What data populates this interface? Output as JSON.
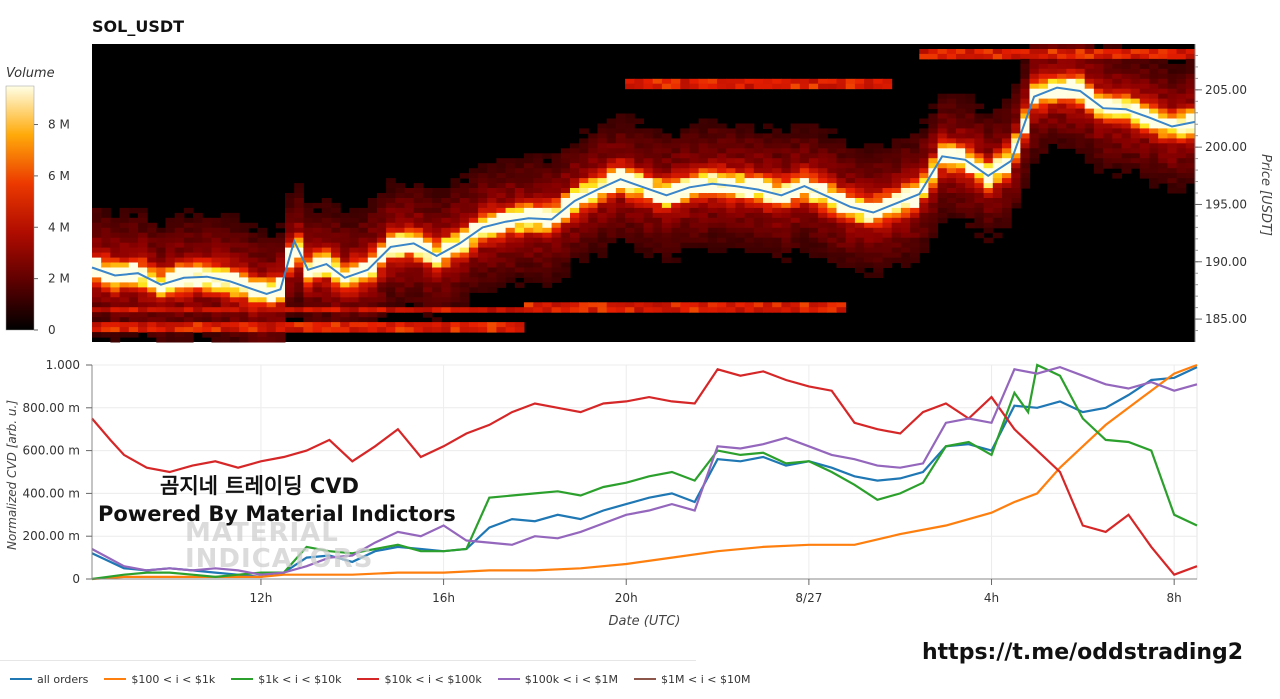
{
  "title": "SOL_USDT",
  "colorbar": {
    "title": "Volume",
    "ticks": [
      "0",
      "2 M",
      "4 M",
      "6 M",
      "8 M"
    ],
    "values": [
      0,
      2,
      4,
      6,
      8
    ],
    "max": 9.5
  },
  "watermark": {
    "line1": "곰지네 트레이딩 CVD",
    "line2": "Powered By Material Indictors",
    "brand_line1": "MATERIAL",
    "brand_line2": "INDICATORS"
  },
  "telegram_url": "https://t.me/oddstrading2",
  "legend": [
    {
      "label": "all orders",
      "color": "#1f77b4"
    },
    {
      "label": "$100 < i < $1k",
      "color": "#ff7f0e"
    },
    {
      "label": "$1k < i < $10k",
      "color": "#2ca02c"
    },
    {
      "label": "$10k < i < $100k",
      "color": "#d62728"
    },
    {
      "label": "$100k < i < $1M",
      "color": "#9467bd"
    },
    {
      "label": "$1M < i < $10M",
      "color": "#8c564b"
    }
  ],
  "chart_data": [
    {
      "type": "heatmap",
      "title": "SOL_USDT",
      "ylabel": "Price [USDT]",
      "ylim": [
        183,
        209
      ],
      "yticks": [
        "185.00",
        "190.00",
        "195.00",
        "200.00",
        "205.00"
      ],
      "ytick_values": [
        185,
        190,
        195,
        200,
        205
      ],
      "x_hours": [
        8.5,
        32.5
      ],
      "price_line": {
        "color": "#3a86c8",
        "points": [
          [
            8.5,
            189.5
          ],
          [
            9,
            188.8
          ],
          [
            9.5,
            189.0
          ],
          [
            10,
            188.0
          ],
          [
            10.5,
            188.6
          ],
          [
            11,
            188.7
          ],
          [
            11.5,
            188.3
          ],
          [
            12,
            187.6
          ],
          [
            12.3,
            187.2
          ],
          [
            12.6,
            187.6
          ],
          [
            12.9,
            191.8
          ],
          [
            13.2,
            189.3
          ],
          [
            13.6,
            189.8
          ],
          [
            14,
            188.6
          ],
          [
            14.5,
            189.3
          ],
          [
            15,
            191.3
          ],
          [
            15.5,
            191.6
          ],
          [
            16,
            190.5
          ],
          [
            16.5,
            191.6
          ],
          [
            17,
            193.0
          ],
          [
            17.5,
            193.5
          ],
          [
            18,
            193.8
          ],
          [
            18.5,
            193.7
          ],
          [
            19,
            195.3
          ],
          [
            19.5,
            196.3
          ],
          [
            20,
            197.2
          ],
          [
            20.5,
            196.5
          ],
          [
            21,
            195.8
          ],
          [
            21.5,
            196.5
          ],
          [
            22,
            196.8
          ],
          [
            22.5,
            196.6
          ],
          [
            23,
            196.3
          ],
          [
            23.5,
            195.8
          ],
          [
            24,
            196.6
          ],
          [
            24.5,
            195.7
          ],
          [
            25,
            194.8
          ],
          [
            25.5,
            194.3
          ],
          [
            26,
            195.1
          ],
          [
            26.5,
            195.9
          ],
          [
            27,
            199.2
          ],
          [
            27.5,
            198.9
          ],
          [
            28,
            197.5
          ],
          [
            28.5,
            198.8
          ],
          [
            29,
            204.4
          ],
          [
            29.5,
            205.2
          ],
          [
            30,
            204.9
          ],
          [
            30.5,
            203.4
          ],
          [
            31,
            203.3
          ],
          [
            31.5,
            202.6
          ],
          [
            32,
            201.8
          ],
          [
            32.5,
            202.2
          ]
        ]
      }
    },
    {
      "type": "line",
      "xlabel": "Date (UTC)",
      "ylabel": "Normalized CVD [arb. u.]",
      "ylim": [
        0,
        1.0
      ],
      "yticks": [
        "0",
        "200.00 m",
        "400.00 m",
        "600.00 m",
        "800.00 m",
        "1.000"
      ],
      "ytick_values": [
        0,
        0.2,
        0.4,
        0.6,
        0.8,
        1.0
      ],
      "xticks": [
        "12h",
        "16h",
        "20h",
        "8/27",
        "4h",
        "8h"
      ],
      "xtick_values": [
        12,
        16,
        20,
        24,
        28,
        32
      ],
      "x_range": [
        8.3,
        32.5
      ],
      "series": [
        {
          "name": "all orders",
          "color": "#1f77b4",
          "x": [
            8.3,
            9,
            9.5,
            10,
            10.5,
            11,
            11.5,
            12,
            12.5,
            13,
            13.5,
            14,
            14.5,
            15,
            15.5,
            16,
            16.5,
            17,
            17.5,
            18,
            18.5,
            19,
            19.5,
            20,
            20.5,
            21,
            21.5,
            22,
            22.5,
            23,
            23.5,
            24,
            24.5,
            25,
            25.5,
            26,
            26.5,
            27,
            27.5,
            28,
            28.5,
            29,
            29.5,
            30,
            30.5,
            31,
            31.5,
            32,
            32.5
          ],
          "y": [
            0.12,
            0.05,
            0.04,
            0.05,
            0.04,
            0.03,
            0.02,
            0.01,
            0.03,
            0.1,
            0.11,
            0.08,
            0.13,
            0.15,
            0.14,
            0.13,
            0.14,
            0.24,
            0.28,
            0.27,
            0.3,
            0.28,
            0.32,
            0.35,
            0.38,
            0.4,
            0.36,
            0.56,
            0.55,
            0.57,
            0.53,
            0.55,
            0.52,
            0.48,
            0.46,
            0.47,
            0.5,
            0.62,
            0.63,
            0.6,
            0.81,
            0.8,
            0.83,
            0.78,
            0.8,
            0.86,
            0.93,
            0.94,
            0.99
          ]
        },
        {
          "name": "$100 < i < $1k",
          "color": "#ff7f0e",
          "x": [
            8.3,
            9,
            10,
            11,
            12,
            12.5,
            13,
            14,
            15,
            16,
            17,
            18,
            19,
            20,
            21,
            22,
            23,
            24,
            25,
            26,
            27,
            28,
            28.5,
            29,
            29.5,
            30,
            30.5,
            31,
            31.5,
            32,
            32.5
          ],
          "y": [
            0.0,
            0.01,
            0.01,
            0.01,
            0.01,
            0.02,
            0.02,
            0.02,
            0.03,
            0.03,
            0.04,
            0.04,
            0.05,
            0.07,
            0.1,
            0.13,
            0.15,
            0.16,
            0.16,
            0.21,
            0.25,
            0.31,
            0.36,
            0.4,
            0.52,
            0.62,
            0.72,
            0.8,
            0.88,
            0.96,
            1.0
          ]
        },
        {
          "name": "$1k < i < $10k",
          "color": "#2ca02c",
          "x": [
            8.3,
            9,
            9.5,
            10,
            10.5,
            11,
            11.5,
            12,
            12.5,
            13,
            13.5,
            14,
            14.5,
            15,
            15.5,
            16,
            16.5,
            17,
            17.5,
            18,
            18.5,
            19,
            19.5,
            20,
            20.5,
            21,
            21.5,
            22,
            22.5,
            23,
            23.5,
            24,
            24.5,
            25,
            25.5,
            26,
            26.5,
            27,
            27.5,
            28,
            28.5,
            28.8,
            29,
            29.5,
            30,
            30.5,
            31,
            31.5,
            32,
            32.5
          ],
          "y": [
            0.0,
            0.02,
            0.03,
            0.03,
            0.02,
            0.01,
            0.02,
            0.03,
            0.03,
            0.15,
            0.13,
            0.12,
            0.14,
            0.16,
            0.13,
            0.13,
            0.14,
            0.38,
            0.39,
            0.4,
            0.41,
            0.39,
            0.43,
            0.45,
            0.48,
            0.5,
            0.46,
            0.6,
            0.58,
            0.59,
            0.54,
            0.55,
            0.5,
            0.44,
            0.37,
            0.4,
            0.45,
            0.62,
            0.64,
            0.58,
            0.87,
            0.78,
            1.0,
            0.95,
            0.75,
            0.65,
            0.64,
            0.6,
            0.3,
            0.25
          ]
        },
        {
          "name": "$10k < i < $100k",
          "color": "#d62728",
          "x": [
            8.3,
            8.7,
            9,
            9.5,
            10,
            10.5,
            11,
            11.5,
            12,
            12.5,
            13,
            13.5,
            14,
            14.5,
            15,
            15.5,
            16,
            16.5,
            17,
            17.5,
            18,
            18.5,
            19,
            19.5,
            20,
            20.5,
            21,
            21.5,
            22,
            22.5,
            23,
            23.5,
            24,
            24.5,
            25,
            25.5,
            26,
            26.5,
            27,
            27.5,
            28,
            28.5,
            29,
            29.5,
            30,
            30.5,
            31,
            31.5,
            32,
            32.5
          ],
          "y": [
            0.75,
            0.65,
            0.58,
            0.52,
            0.5,
            0.53,
            0.55,
            0.52,
            0.55,
            0.57,
            0.6,
            0.65,
            0.55,
            0.62,
            0.7,
            0.57,
            0.62,
            0.68,
            0.72,
            0.78,
            0.82,
            0.8,
            0.78,
            0.82,
            0.83,
            0.85,
            0.83,
            0.82,
            0.98,
            0.95,
            0.97,
            0.93,
            0.9,
            0.88,
            0.73,
            0.7,
            0.68,
            0.78,
            0.82,
            0.75,
            0.85,
            0.7,
            0.6,
            0.5,
            0.25,
            0.22,
            0.3,
            0.15,
            0.02,
            0.06
          ]
        },
        {
          "name": "$100k < i < $1M",
          "color": "#9467bd",
          "x": [
            8.3,
            9,
            9.5,
            10,
            10.5,
            11,
            11.5,
            12,
            12.5,
            13,
            13.5,
            14,
            14.5,
            15,
            15.5,
            16,
            16.5,
            17,
            17.5,
            18,
            18.5,
            19,
            19.5,
            20,
            20.5,
            21,
            21.5,
            22,
            22.5,
            23,
            23.5,
            24,
            24.5,
            25,
            25.5,
            26,
            26.5,
            27,
            27.5,
            28,
            28.5,
            29,
            29.5,
            30,
            30.5,
            31,
            31.5,
            32,
            32.5
          ],
          "y": [
            0.14,
            0.06,
            0.04,
            0.05,
            0.04,
            0.05,
            0.04,
            0.02,
            0.03,
            0.06,
            0.1,
            0.11,
            0.17,
            0.22,
            0.2,
            0.25,
            0.18,
            0.17,
            0.16,
            0.2,
            0.19,
            0.22,
            0.26,
            0.3,
            0.32,
            0.35,
            0.32,
            0.62,
            0.61,
            0.63,
            0.66,
            0.62,
            0.58,
            0.56,
            0.53,
            0.52,
            0.54,
            0.73,
            0.75,
            0.73,
            0.98,
            0.96,
            0.99,
            0.95,
            0.91,
            0.89,
            0.92,
            0.88,
            0.91
          ]
        },
        {
          "name": "$1M < i < $10M",
          "color": "#8c564b",
          "x": [],
          "y": []
        }
      ]
    }
  ]
}
